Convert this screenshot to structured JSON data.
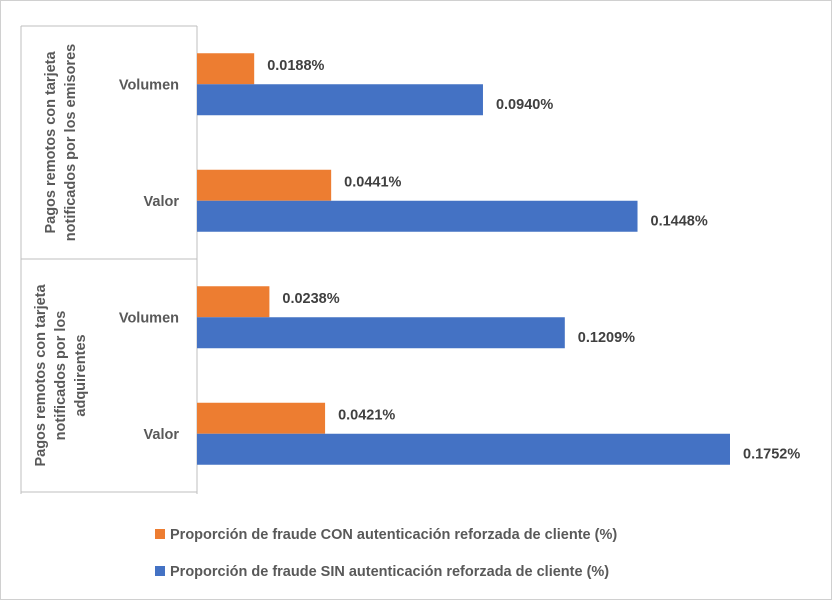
{
  "chart_data": {
    "type": "bar",
    "orientation": "horizontal",
    "groups": [
      {
        "label_lines": [
          "Pagos remotos con tarjeta",
          "notificados por los emisores"
        ],
        "categories": [
          "Volumen",
          "Valor"
        ]
      },
      {
        "label_lines": [
          "Pagos remotos con tarjeta",
          "notificados por los",
          "adquirentes"
        ],
        "categories": [
          "Volumen",
          "Valor"
        ]
      }
    ],
    "series": [
      {
        "name": "Proporción de fraude CON autenticación reforzada de cliente (%)",
        "color": "#ED7D31",
        "values": [
          0.0188,
          0.0441,
          0.0238,
          0.0421
        ],
        "labels": [
          "0.0188%",
          "0.0441%",
          "0.0238%",
          "0.0421%"
        ]
      },
      {
        "name": "Proporción de fraude SIN autenticación reforzada de cliente (%)",
        "color": "#4472C4",
        "values": [
          0.094,
          0.1448,
          0.1209,
          0.1752
        ],
        "labels": [
          "0.0940%",
          "0.1448%",
          "0.1209%",
          "0.1752%"
        ]
      }
    ],
    "xlim": [
      0,
      0.1752
    ],
    "grid": false,
    "legend_position": "bottom"
  }
}
